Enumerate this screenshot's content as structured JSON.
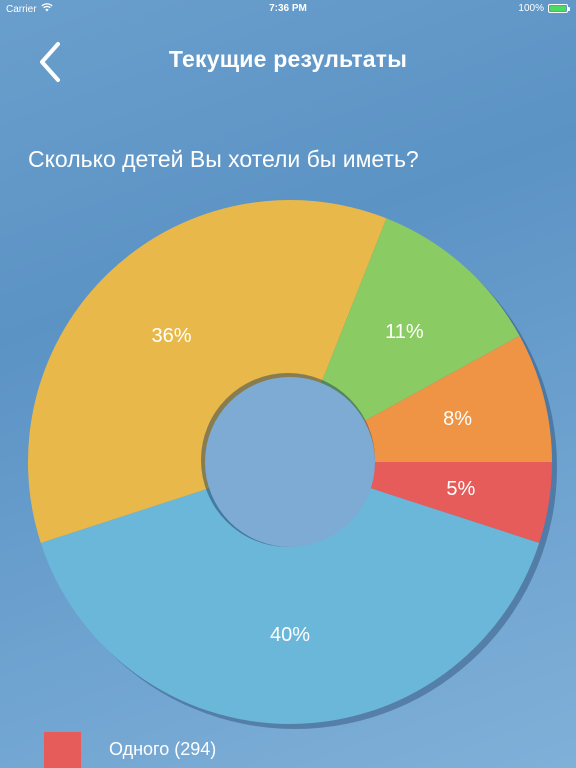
{
  "status_bar": {
    "carrier": "Carrier",
    "time": "7:36 PM",
    "battery": "100%",
    "battery_level": 1.0
  },
  "nav": {
    "title": "Текущие результаты",
    "back_icon": "chevron-left-icon"
  },
  "question": "Сколько детей Вы хотели бы иметь?",
  "colors": {
    "background": "#5b93c5",
    "hole": "#7eabd3",
    "battery_fill": "#4cd964"
  },
  "chart_data": {
    "type": "pie",
    "donut": true,
    "start_angle_deg": 0,
    "direction": "clockwise",
    "slices": [
      {
        "label": "5%",
        "value": 5,
        "color": "#e65c5a"
      },
      {
        "label": "40%",
        "value": 40,
        "color": "#6bb7d9"
      },
      {
        "label": "36%",
        "value": 36,
        "color": "#e8b94a"
      },
      {
        "label": "11%",
        "value": 11,
        "color": "#8bcb64"
      },
      {
        "label": "8%",
        "value": 8,
        "color": "#ee9444"
      }
    ]
  },
  "legend": [
    {
      "label": "Одного (294)",
      "color": "#e65c5a"
    }
  ]
}
